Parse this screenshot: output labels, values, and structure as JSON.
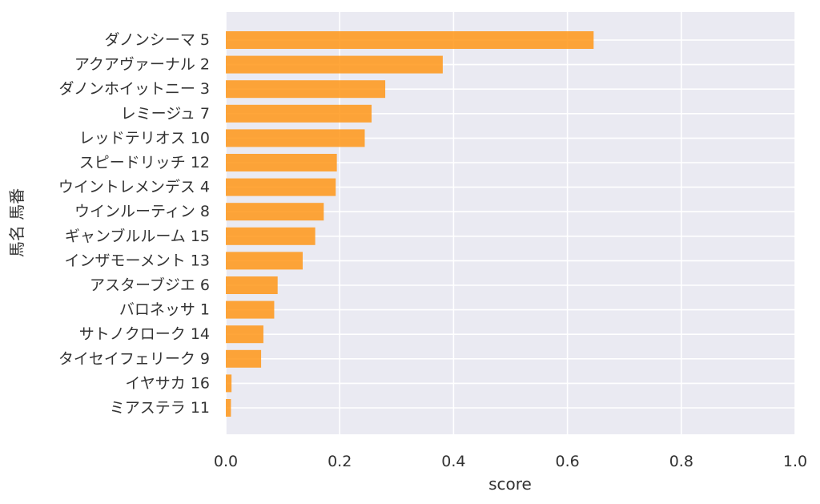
{
  "chart_data": {
    "type": "bar",
    "orientation": "horizontal",
    "categories": [
      "ダノンシーマ 5",
      "アクアヴァーナル 2",
      "ダノンホイットニー 3",
      "レミージュ 7",
      "レッドテリオス 10",
      "スピードリッチ 12",
      "ウイントレメンデス 4",
      "ウインルーティン 8",
      "ギャンブルルーム 15",
      "インザモーメント 13",
      "アスターブジエ 6",
      "バロネッサ 1",
      "サトノクローク 14",
      "タイセイフェリーク 9",
      "イヤサカ 16",
      "ミアステラ 11"
    ],
    "values": [
      0.646,
      0.381,
      0.28,
      0.256,
      0.244,
      0.195,
      0.193,
      0.172,
      0.157,
      0.135,
      0.091,
      0.085,
      0.066,
      0.062,
      0.01,
      0.009
    ],
    "xlabel": "score",
    "ylabel": "馬名 馬番",
    "xlim": [
      0,
      1.0
    ],
    "xticks": [
      "0.0",
      "0.2",
      "0.4",
      "0.6",
      "0.8",
      "1.0"
    ],
    "grid": true,
    "bar_color": "#ff9618",
    "background_color": "#eaeaf2"
  }
}
